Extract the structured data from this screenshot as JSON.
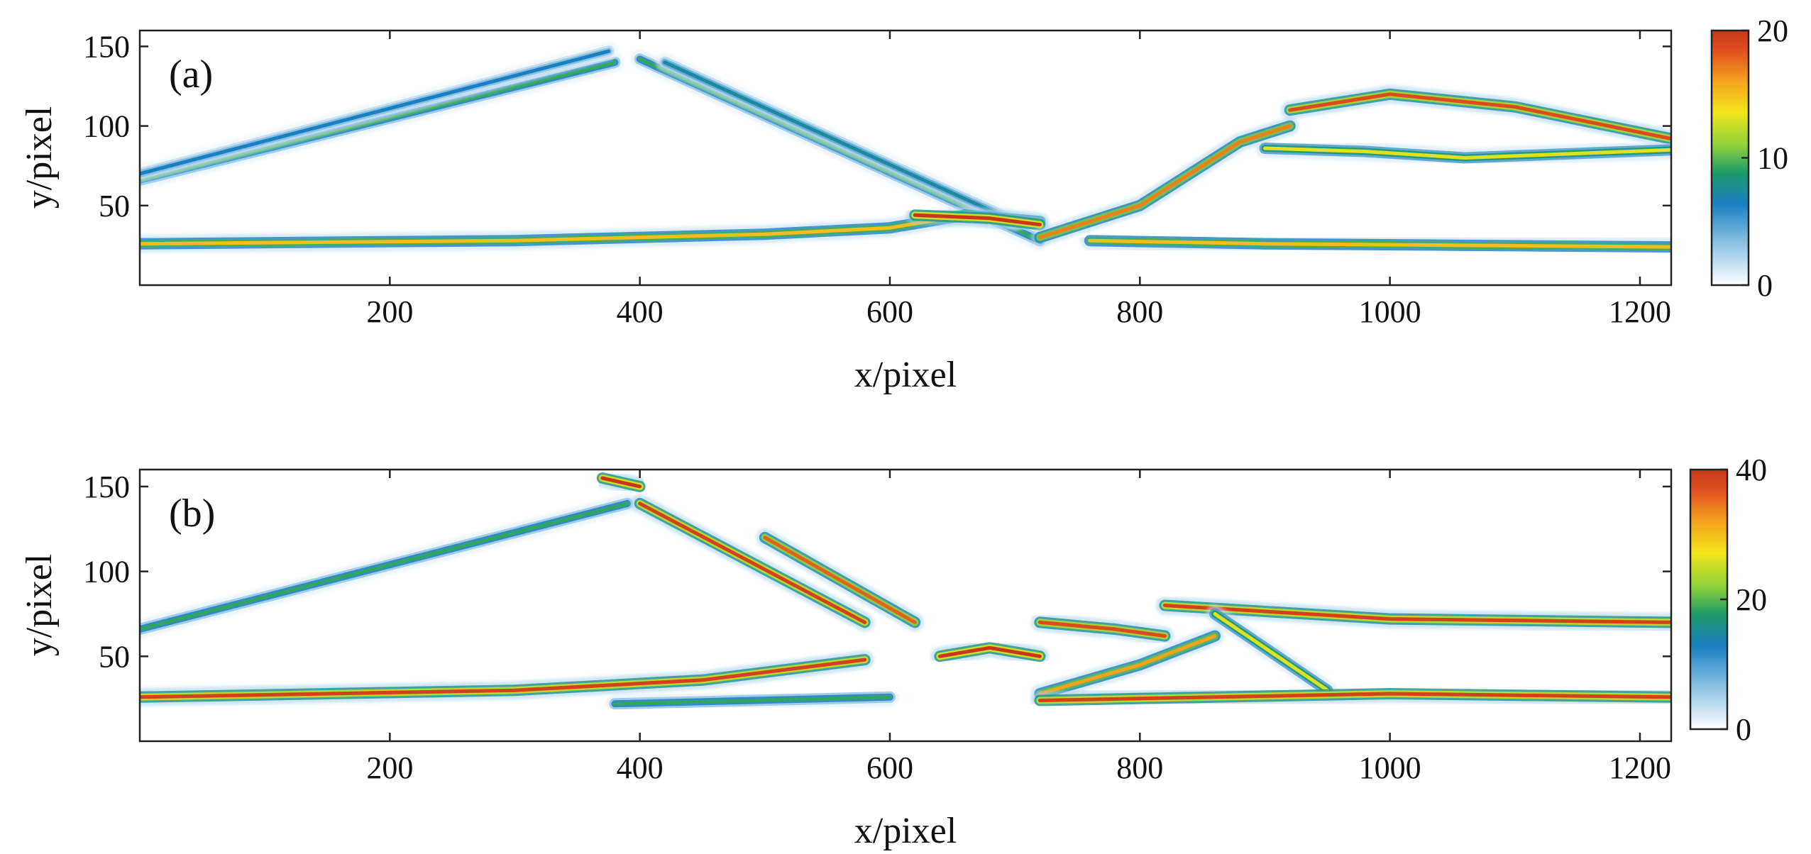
{
  "chart_data": [
    {
      "type": "heatmap",
      "panel_label": "(a)",
      "xlabel": "x/pixel",
      "ylabel": "y/pixel",
      "xlim": [
        0,
        1225
      ],
      "ylim": [
        0,
        160
      ],
      "xticks": [
        200,
        400,
        600,
        800,
        1000,
        1200
      ],
      "yticks": [
        50,
        100,
        150
      ],
      "colorbar": {
        "min": 0,
        "max": 20,
        "ticks": [
          0,
          10,
          20
        ]
      },
      "colormap": [
        "#ffffff",
        "#9ccbe8",
        "#1a7fc1",
        "#1c9a6a",
        "#8fd13a",
        "#f2e51a",
        "#f5a21f",
        "#e0501f",
        "#c8361a"
      ],
      "features": [
        {
          "name": "rising-line-left",
          "points": [
            [
              0,
              66
            ],
            [
              380,
              140
            ]
          ],
          "value": 8
        },
        {
          "name": "upper-left-line",
          "points": [
            [
              0,
              70
            ],
            [
              375,
              147
            ]
          ],
          "value": 5
        },
        {
          "name": "descending-line",
          "points": [
            [
              400,
              142
            ],
            [
              720,
              28
            ]
          ],
          "value": 8
        },
        {
          "name": "descending-line-2",
          "points": [
            [
              420,
              140
            ],
            [
              700,
              40
            ]
          ],
          "value": 6
        },
        {
          "name": "bottom-band",
          "points": [
            [
              0,
              26
            ],
            [
              300,
              28
            ],
            [
              500,
              32
            ],
            [
              600,
              36
            ],
            [
              660,
              44
            ],
            [
              720,
              40
            ]
          ],
          "value": 14
        },
        {
          "name": "central-hotspot",
          "points": [
            [
              620,
              44
            ],
            [
              680,
              42
            ],
            [
              720,
              38
            ]
          ],
          "value": 20
        },
        {
          "name": "rising-band-mid",
          "points": [
            [
              720,
              30
            ],
            [
              800,
              50
            ],
            [
              880,
              90
            ],
            [
              920,
              100
            ]
          ],
          "value": 16
        },
        {
          "name": "upper-right-band",
          "points": [
            [
              920,
              110
            ],
            [
              1000,
              120
            ],
            [
              1100,
              112
            ],
            [
              1225,
              92
            ]
          ],
          "value": 18
        },
        {
          "name": "mid-right-band",
          "points": [
            [
              900,
              86
            ],
            [
              980,
              84
            ],
            [
              1060,
              80
            ],
            [
              1225,
              85
            ]
          ],
          "value": 12
        },
        {
          "name": "right-bottom-band",
          "points": [
            [
              760,
              28
            ],
            [
              900,
              26
            ],
            [
              1225,
              24
            ]
          ],
          "value": 14
        }
      ]
    },
    {
      "type": "heatmap",
      "panel_label": "(b)",
      "xlabel": "x/pixel",
      "ylabel": "y/pixel",
      "xlim": [
        0,
        1225
      ],
      "ylim": [
        0,
        160
      ],
      "xticks": [
        200,
        400,
        600,
        800,
        1000,
        1200
      ],
      "yticks": [
        50,
        100,
        150
      ],
      "colorbar": {
        "min": 0,
        "max": 40,
        "ticks": [
          0,
          20,
          40
        ]
      },
      "colormap": [
        "#ffffff",
        "#9ccbe8",
        "#1a7fc1",
        "#1c9a6a",
        "#8fd13a",
        "#f2e51a",
        "#f5a21f",
        "#e0501f",
        "#c8361a"
      ],
      "features": [
        {
          "name": "rising-line-left",
          "points": [
            [
              0,
              66
            ],
            [
              390,
              140
            ]
          ],
          "value": 16
        },
        {
          "name": "top-peak-blob",
          "points": [
            [
              370,
              155
            ],
            [
              400,
              150
            ]
          ],
          "value": 40
        },
        {
          "name": "descending-band-1",
          "points": [
            [
              400,
              140
            ],
            [
              580,
              70
            ]
          ],
          "value": 38
        },
        {
          "name": "descending-band-2",
          "points": [
            [
              500,
              120
            ],
            [
              620,
              70
            ]
          ],
          "value": 34
        },
        {
          "name": "bottom-rising-band",
          "points": [
            [
              0,
              26
            ],
            [
              300,
              30
            ],
            [
              450,
              36
            ],
            [
              580,
              48
            ]
          ],
          "value": 38
        },
        {
          "name": "central-blob",
          "points": [
            [
              640,
              50
            ],
            [
              680,
              55
            ],
            [
              720,
              50
            ]
          ],
          "value": 40
        },
        {
          "name": "mid-blobs",
          "points": [
            [
              720,
              70
            ],
            [
              780,
              66
            ],
            [
              820,
              62
            ]
          ],
          "value": 36
        },
        {
          "name": "rising-band-center",
          "points": [
            [
              720,
              28
            ],
            [
              800,
              45
            ],
            [
              860,
              62
            ]
          ],
          "value": 30
        },
        {
          "name": "upper-right-band",
          "points": [
            [
              820,
              80
            ],
            [
              1000,
              72
            ],
            [
              1225,
              70
            ]
          ],
          "value": 38
        },
        {
          "name": "descending-right",
          "points": [
            [
              860,
              75
            ],
            [
              950,
              30
            ]
          ],
          "value": 24
        },
        {
          "name": "right-bottom-band",
          "points": [
            [
              720,
              24
            ],
            [
              1000,
              28
            ],
            [
              1225,
              26
            ]
          ],
          "value": 38
        },
        {
          "name": "lower-left-band",
          "points": [
            [
              380,
              22
            ],
            [
              600,
              26
            ]
          ],
          "value": 16
        }
      ]
    }
  ]
}
